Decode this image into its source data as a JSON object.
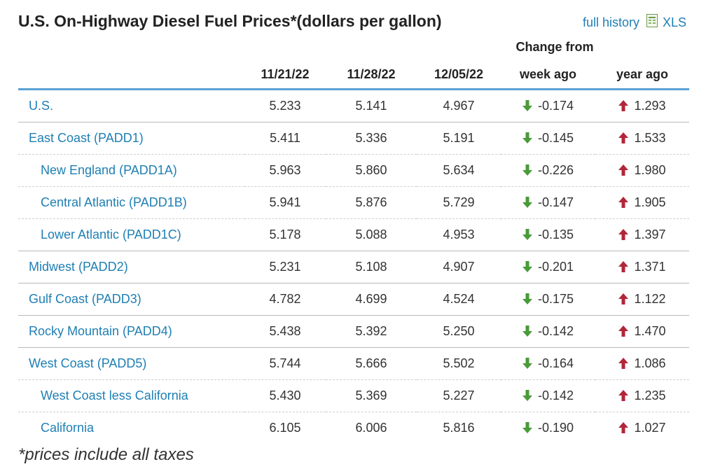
{
  "title": "U.S. On-Highway Diesel Fuel Prices*(dollars per gallon)",
  "links": {
    "full_history": "full history",
    "xls": "XLS"
  },
  "colors": {
    "link": "#1e7fb4",
    "down_arrow": "#4a9a3a",
    "up_arrow": "#b3263a",
    "header_rule": "#5aa1d3"
  },
  "header": {
    "change_from": "Change from",
    "columns": [
      "",
      "11/21/22",
      "11/28/22",
      "12/05/22",
      "week ago",
      "year ago"
    ]
  },
  "rows": [
    {
      "region": "U.S.",
      "indent": false,
      "v1": "5.233",
      "v2": "5.141",
      "v3": "4.967",
      "week": "-0.174",
      "year": "1.293"
    },
    {
      "region": "East Coast (PADD1)",
      "indent": false,
      "v1": "5.411",
      "v2": "5.336",
      "v3": "5.191",
      "week": "-0.145",
      "year": "1.533"
    },
    {
      "region": "New England (PADD1A)",
      "indent": true,
      "v1": "5.963",
      "v2": "5.860",
      "v3": "5.634",
      "week": "-0.226",
      "year": "1.980"
    },
    {
      "region": "Central Atlantic (PADD1B)",
      "indent": true,
      "v1": "5.941",
      "v2": "5.876",
      "v3": "5.729",
      "week": "-0.147",
      "year": "1.905"
    },
    {
      "region": "Lower Atlantic (PADD1C)",
      "indent": true,
      "v1": "5.178",
      "v2": "5.088",
      "v3": "4.953",
      "week": "-0.135",
      "year": "1.397"
    },
    {
      "region": "Midwest (PADD2)",
      "indent": false,
      "v1": "5.231",
      "v2": "5.108",
      "v3": "4.907",
      "week": "-0.201",
      "year": "1.371"
    },
    {
      "region": "Gulf Coast (PADD3)",
      "indent": false,
      "v1": "4.782",
      "v2": "4.699",
      "v3": "4.524",
      "week": "-0.175",
      "year": "1.122"
    },
    {
      "region": "Rocky Mountain (PADD4)",
      "indent": false,
      "v1": "5.438",
      "v2": "5.392",
      "v3": "5.250",
      "week": "-0.142",
      "year": "1.470"
    },
    {
      "region": "West Coast (PADD5)",
      "indent": false,
      "v1": "5.744",
      "v2": "5.666",
      "v3": "5.502",
      "week": "-0.164",
      "year": "1.086"
    },
    {
      "region": "West Coast less California",
      "indent": true,
      "v1": "5.430",
      "v2": "5.369",
      "v3": "5.227",
      "week": "-0.142",
      "year": "1.235"
    },
    {
      "region": "California",
      "indent": true,
      "v1": "6.105",
      "v2": "6.006",
      "v3": "5.816",
      "week": "-0.190",
      "year": "1.027"
    }
  ],
  "footnote": "*prices include all taxes"
}
